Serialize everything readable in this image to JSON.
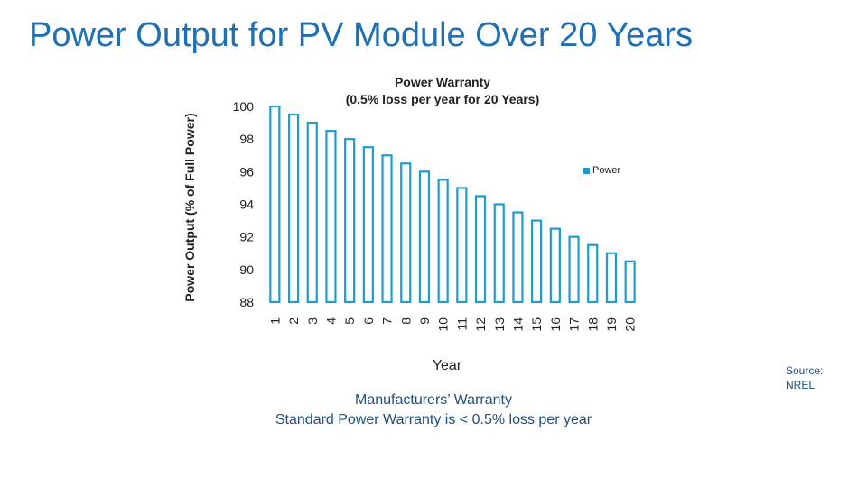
{
  "slide": {
    "title": "Power Output for PV Module Over 20 Years",
    "caption_line1": "Manufacturers’ Warranty",
    "caption_line2": "Standard Power Warranty is < 0.5% loss per year",
    "source_line1": "Source:",
    "source_line2": "NREL"
  },
  "colors": {
    "bar_outline": "#1f9bd0",
    "bar_fill": "#ffffff",
    "title": "#1f6fb4"
  },
  "chart_data": {
    "type": "bar",
    "title_line1": "Power Warranty",
    "title_line2": "(0.5% loss per year for 20 Years)",
    "xlabel": "Year",
    "ylabel": "Power Output (% of Full Power)",
    "legend": [
      "Power"
    ],
    "legend_position": "right",
    "categories": [
      "1",
      "2",
      "3",
      "4",
      "5",
      "6",
      "7",
      "8",
      "9",
      "10",
      "11",
      "12",
      "13",
      "14",
      "15",
      "16",
      "17",
      "18",
      "19",
      "20"
    ],
    "series": [
      {
        "name": "Power",
        "values": [
          100,
          99.5,
          99,
          98.5,
          98,
          97.5,
          97,
          96.5,
          96,
          95.5,
          95,
          94.5,
          94,
          93.5,
          93,
          92.5,
          92,
          91.5,
          91,
          90.5
        ]
      }
    ],
    "yticks": [
      "88",
      "90",
      "92",
      "94",
      "96",
      "98",
      "100"
    ],
    "ylim": [
      88,
      100
    ],
    "grid": false
  }
}
